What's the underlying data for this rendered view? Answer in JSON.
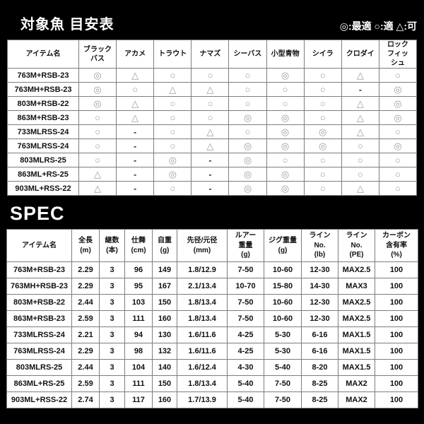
{
  "colors": {
    "page_background": "#000000",
    "cell_background": "#ffffff",
    "border": "#7d7d7d",
    "text": "#111111",
    "symbol_gray": "#9a9a9a",
    "title_text": "#ffffff"
  },
  "fish_table": {
    "title": "対象魚 目安表",
    "legend": "◎:最適 ○:適 △:可",
    "columns": [
      [
        "アイテム名"
      ],
      [
        "ブラック",
        "バス"
      ],
      [
        "アカメ"
      ],
      [
        "トラウト"
      ],
      [
        "ナマズ"
      ],
      [
        "シーバス"
      ],
      [
        "小型青物"
      ],
      [
        "シイラ"
      ],
      [
        "クロダイ"
      ],
      [
        "ロック",
        "フィッ",
        "シュ"
      ]
    ],
    "rows": [
      {
        "item": "763M+RSB-23",
        "marks": [
          "◎",
          "△",
          "○",
          "○",
          "○",
          "◎",
          "○",
          "△",
          "○"
        ]
      },
      {
        "item": "763MH+RSB-23",
        "marks": [
          "◎",
          "○",
          "△",
          "△",
          "○",
          "○",
          "○",
          "-",
          "◎"
        ]
      },
      {
        "item": "803M+RSB-22",
        "marks": [
          "◎",
          "△",
          "○",
          "○",
          "○",
          "○",
          "○",
          "△",
          "◎"
        ]
      },
      {
        "item": "863M+RSB-23",
        "marks": [
          "○",
          "△",
          "○",
          "○",
          "◎",
          "◎",
          "○",
          "△",
          "◎"
        ]
      },
      {
        "item": "733MLRSS-24",
        "marks": [
          "○",
          "-",
          "○",
          "△",
          "○",
          "◎",
          "◎",
          "△",
          "○"
        ]
      },
      {
        "item": "763MLRSS-24",
        "marks": [
          "○",
          "-",
          "○",
          "△",
          "◎",
          "◎",
          "◎",
          "○",
          "◎"
        ]
      },
      {
        "item": "803MLRS-25",
        "marks": [
          "○",
          "-",
          "◎",
          "-",
          "◎",
          "○",
          "○",
          "○",
          "○"
        ]
      },
      {
        "item": "863ML+RS-25",
        "marks": [
          "△",
          "-",
          "◎",
          "-",
          "◎",
          "◎",
          "○",
          "○",
          "○"
        ]
      },
      {
        "item": "903ML+RSS-22",
        "marks": [
          "△",
          "-",
          "○",
          "-",
          "◎",
          "◎",
          "○",
          "△",
          "○"
        ]
      }
    ]
  },
  "spec_table": {
    "title": "SPEC",
    "columns": [
      [
        "アイテム名"
      ],
      [
        "全長",
        "(m)"
      ],
      [
        "継数",
        "(本)"
      ],
      [
        "仕舞",
        "(cm)"
      ],
      [
        "自重",
        "(g)"
      ],
      [
        "先径/元径",
        "(mm)"
      ],
      [
        "ルアー",
        "重量",
        "(g)"
      ],
      [
        "ジグ重量",
        "(g)"
      ],
      [
        "ライン",
        "No.",
        "(lb)"
      ],
      [
        "ライン",
        "No.",
        "(PE)"
      ],
      [
        "カーボン",
        "含有率",
        "(%)"
      ]
    ],
    "rows": [
      {
        "item": "763M+RSB-23",
        "values": [
          "2.29",
          "3",
          "96",
          "149",
          "1.8/12.9",
          "7-50",
          "10-60",
          "12-30",
          "MAX2.5",
          "100"
        ]
      },
      {
        "item": "763MH+RSB-23",
        "values": [
          "2.29",
          "3",
          "95",
          "167",
          "2.1/13.4",
          "10-70",
          "15-80",
          "14-30",
          "MAX3",
          "100"
        ]
      },
      {
        "item": "803M+RSB-22",
        "values": [
          "2.44",
          "3",
          "103",
          "150",
          "1.8/13.4",
          "7-50",
          "10-60",
          "12-30",
          "MAX2.5",
          "100"
        ]
      },
      {
        "item": "863M+RSB-23",
        "values": [
          "2.59",
          "3",
          "111",
          "160",
          "1.8/13.4",
          "7-50",
          "10-60",
          "12-30",
          "MAX2.5",
          "100"
        ]
      },
      {
        "item": "733MLRSS-24",
        "values": [
          "2.21",
          "3",
          "94",
          "130",
          "1.6/11.6",
          "4-25",
          "5-30",
          "6-16",
          "MAX1.5",
          "100"
        ]
      },
      {
        "item": "763MLRSS-24",
        "values": [
          "2.29",
          "3",
          "98",
          "132",
          "1.6/11.6",
          "4-25",
          "5-30",
          "6-16",
          "MAX1.5",
          "100"
        ]
      },
      {
        "item": "803MLRS-25",
        "values": [
          "2.44",
          "3",
          "104",
          "140",
          "1.6/12.4",
          "4-30",
          "5-40",
          "8-20",
          "MAX1.5",
          "100"
        ]
      },
      {
        "item": "863ML+RS-25",
        "values": [
          "2.59",
          "3",
          "111",
          "150",
          "1.8/13.4",
          "5-40",
          "7-50",
          "8-25",
          "MAX2",
          "100"
        ]
      },
      {
        "item": "903ML+RSS-22",
        "values": [
          "2.74",
          "3",
          "117",
          "160",
          "1.7/13.9",
          "5-40",
          "7-50",
          "8-25",
          "MAX2",
          "100"
        ]
      }
    ]
  }
}
